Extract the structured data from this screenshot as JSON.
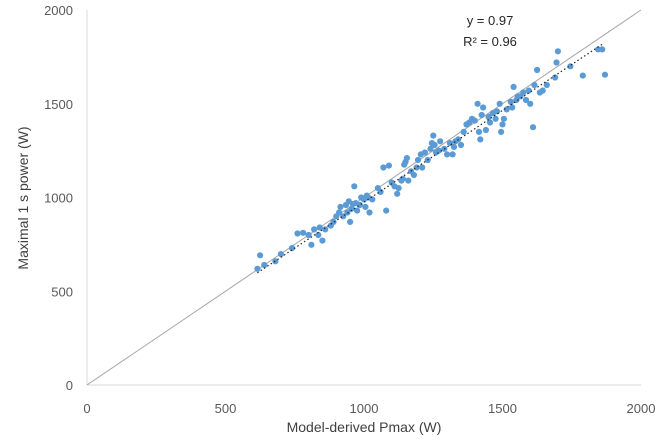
{
  "chart_data": {
    "type": "scatter",
    "xlabel": "Model-derived Pmax (W)",
    "ylabel": "Maximal 1 s power (W)",
    "xlim": [
      0,
      2000
    ],
    "ylim": [
      0,
      2000
    ],
    "xticks": [
      "0",
      "500",
      "1000",
      "1500",
      "2000"
    ],
    "yticks": [
      "0",
      "500",
      "1000",
      "1500",
      "2000"
    ],
    "grid": false,
    "identity_line": true,
    "trendline": {
      "style": "dotted",
      "from": [
        615,
        598
      ],
      "to": [
        1865,
        1822
      ]
    },
    "annotations": [
      "y = 0.97",
      "R² = 0.96"
    ],
    "marker_color": "#5b9bd5",
    "points": [
      [
        615,
        620
      ],
      [
        625,
        692
      ],
      [
        640,
        640
      ],
      [
        680,
        660
      ],
      [
        700,
        698
      ],
      [
        740,
        730
      ],
      [
        760,
        808
      ],
      [
        780,
        812
      ],
      [
        800,
        800
      ],
      [
        810,
        748
      ],
      [
        820,
        830
      ],
      [
        835,
        800
      ],
      [
        840,
        840
      ],
      [
        850,
        770
      ],
      [
        860,
        830
      ],
      [
        880,
        850
      ],
      [
        890,
        870
      ],
      [
        900,
        900
      ],
      [
        910,
        920
      ],
      [
        915,
        950
      ],
      [
        925,
        900
      ],
      [
        935,
        960
      ],
      [
        940,
        920
      ],
      [
        945,
        980
      ],
      [
        950,
        870
      ],
      [
        955,
        940
      ],
      [
        960,
        965
      ],
      [
        965,
        1060
      ],
      [
        970,
        970
      ],
      [
        975,
        930
      ],
      [
        985,
        960
      ],
      [
        990,
        1000
      ],
      [
        1000,
        990
      ],
      [
        1005,
        950
      ],
      [
        1010,
        1010
      ],
      [
        1015,
        1000
      ],
      [
        1020,
        920
      ],
      [
        1030,
        990
      ],
      [
        1050,
        1050
      ],
      [
        1060,
        1030
      ],
      [
        1070,
        1160
      ],
      [
        1080,
        930
      ],
      [
        1090,
        1170
      ],
      [
        1100,
        1080
      ],
      [
        1110,
        1060
      ],
      [
        1120,
        1020
      ],
      [
        1125,
        1050
      ],
      [
        1135,
        1090
      ],
      [
        1140,
        1100
      ],
      [
        1145,
        1175
      ],
      [
        1150,
        1190
      ],
      [
        1155,
        1210
      ],
      [
        1160,
        1090
      ],
      [
        1170,
        1140
      ],
      [
        1180,
        1120
      ],
      [
        1190,
        1160
      ],
      [
        1195,
        1200
      ],
      [
        1205,
        1230
      ],
      [
        1210,
        1160
      ],
      [
        1220,
        1240
      ],
      [
        1230,
        1200
      ],
      [
        1240,
        1260
      ],
      [
        1245,
        1290
      ],
      [
        1250,
        1330
      ],
      [
        1255,
        1280
      ],
      [
        1260,
        1240
      ],
      [
        1270,
        1250
      ],
      [
        1275,
        1300
      ],
      [
        1290,
        1260
      ],
      [
        1300,
        1230
      ],
      [
        1310,
        1290
      ],
      [
        1320,
        1230
      ],
      [
        1325,
        1270
      ],
      [
        1330,
        1300
      ],
      [
        1340,
        1310
      ],
      [
        1350,
        1280
      ],
      [
        1360,
        1350
      ],
      [
        1370,
        1390
      ],
      [
        1380,
        1400
      ],
      [
        1390,
        1420
      ],
      [
        1400,
        1410
      ],
      [
        1410,
        1500
      ],
      [
        1415,
        1350
      ],
      [
        1420,
        1310
      ],
      [
        1425,
        1440
      ],
      [
        1430,
        1480
      ],
      [
        1440,
        1360
      ],
      [
        1450,
        1430
      ],
      [
        1455,
        1400
      ],
      [
        1465,
        1450
      ],
      [
        1475,
        1420
      ],
      [
        1480,
        1460
      ],
      [
        1490,
        1500
      ],
      [
        1495,
        1350
      ],
      [
        1500,
        1390
      ],
      [
        1505,
        1420
      ],
      [
        1515,
        1470
      ],
      [
        1530,
        1510
      ],
      [
        1535,
        1480
      ],
      [
        1540,
        1590
      ],
      [
        1550,
        1520
      ],
      [
        1555,
        1540
      ],
      [
        1565,
        1540
      ],
      [
        1575,
        1560
      ],
      [
        1585,
        1520
      ],
      [
        1595,
        1570
      ],
      [
        1600,
        1500
      ],
      [
        1610,
        1375
      ],
      [
        1615,
        1600
      ],
      [
        1625,
        1680
      ],
      [
        1635,
        1560
      ],
      [
        1645,
        1570
      ],
      [
        1660,
        1600
      ],
      [
        1690,
        1640
      ],
      [
        1695,
        1720
      ],
      [
        1700,
        1780
      ],
      [
        1745,
        1700
      ],
      [
        1790,
        1650
      ],
      [
        1845,
        1790
      ],
      [
        1860,
        1790
      ],
      [
        1870,
        1655
      ]
    ]
  }
}
